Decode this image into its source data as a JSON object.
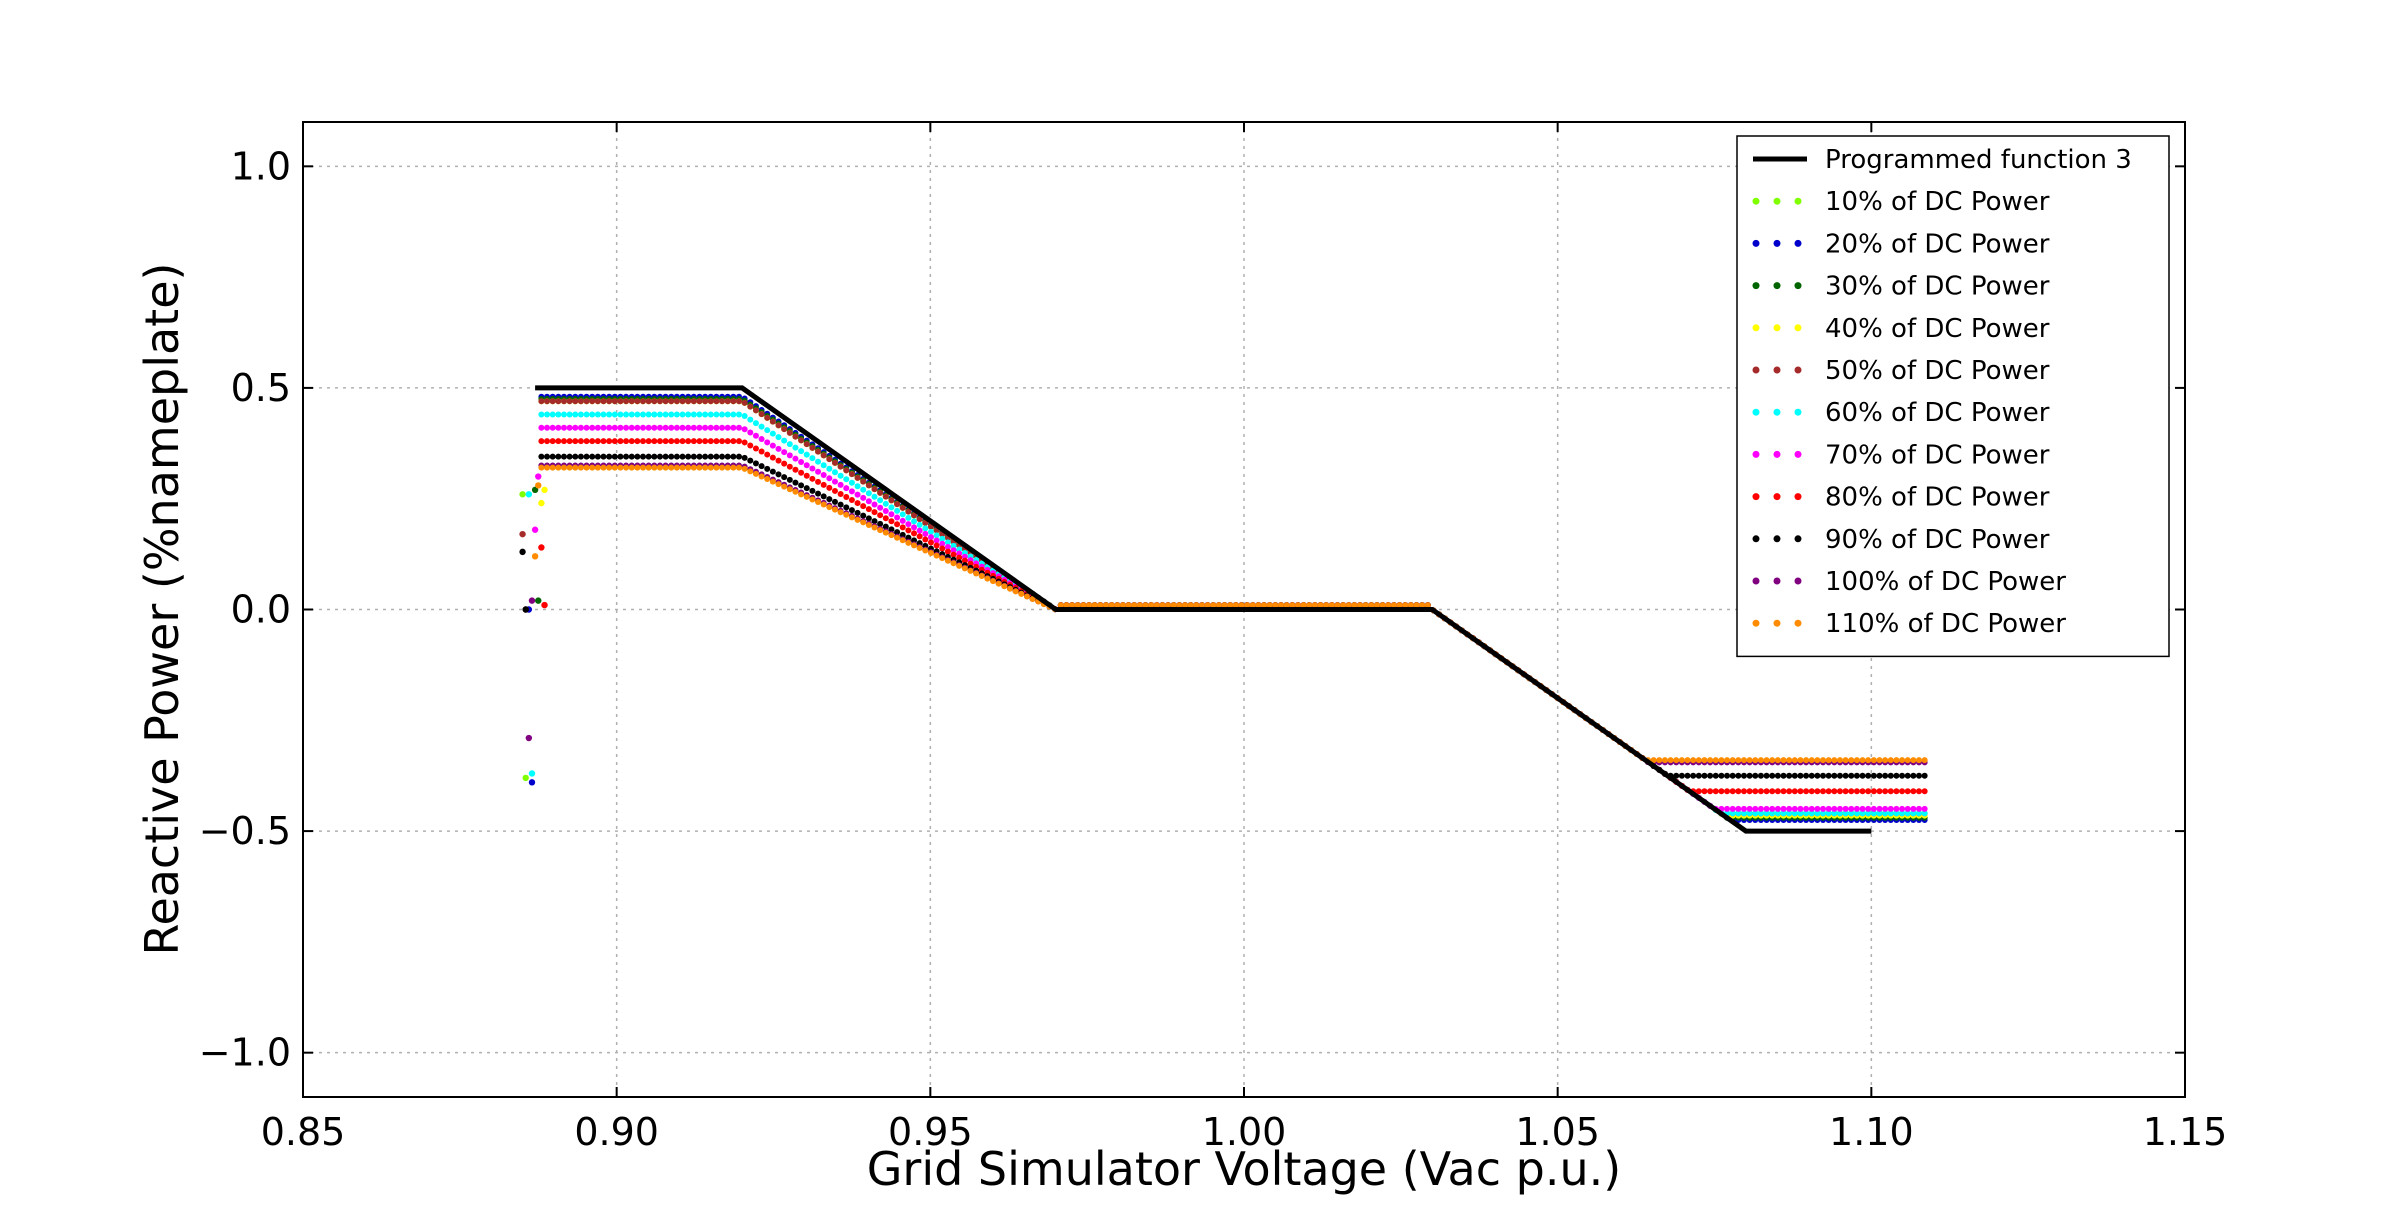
{
  "chart_data": {
    "type": "scatter",
    "xlabel": "Grid Simulator Voltage (Vac p.u.)",
    "ylabel": "Reactive Power (%nameplate)",
    "xlim": [
      0.85,
      1.15
    ],
    "ylim": [
      -1.1,
      1.1
    ],
    "x_ticks": [
      "0.85",
      "0.90",
      "0.95",
      "1.00",
      "1.05",
      "1.10",
      "1.15"
    ],
    "y_ticks": [
      "1.0",
      "0.5",
      "0.0",
      "−0.5",
      "−1.0"
    ],
    "grid": true,
    "legend_position": "top-right",
    "programmed_function": {
      "name": "Programmed function 3",
      "color": "#000000",
      "points": [
        [
          0.887,
          0.5
        ],
        [
          0.92,
          0.5
        ],
        [
          0.97,
          0.0
        ],
        [
          1.03,
          0.0
        ],
        [
          1.08,
          -0.5
        ],
        [
          1.1,
          -0.5
        ]
      ]
    },
    "series": [
      {
        "name": "10% of DC Power",
        "color": "#7fff00",
        "q_low": 0.47,
        "q_high": -0.47
      },
      {
        "name": "20% of DC Power",
        "color": "#0000cd",
        "q_low": 0.48,
        "q_high": -0.475
      },
      {
        "name": "30% of DC Power",
        "color": "#006400",
        "q_low": 0.475,
        "q_high": -0.47
      },
      {
        "name": "40% of DC Power",
        "color": "#ffff00",
        "q_low": 0.47,
        "q_high": -0.465
      },
      {
        "name": "50% of DC Power",
        "color": "#a52a2a",
        "q_low": 0.47,
        "q_high": -0.46
      },
      {
        "name": "60% of DC Power",
        "color": "#00ffff",
        "q_low": 0.44,
        "q_high": -0.46
      },
      {
        "name": "70% of DC Power",
        "color": "#ff00ff",
        "q_low": 0.41,
        "q_high": -0.45
      },
      {
        "name": "80% of DC Power",
        "color": "#ff0000",
        "q_low": 0.38,
        "q_high": -0.41
      },
      {
        "name": "90% of DC Power",
        "color": "#000000",
        "q_low": 0.345,
        "q_high": -0.375
      },
      {
        "name": "100% of DC Power",
        "color": "#800080",
        "q_low": 0.325,
        "q_high": -0.345
      },
      {
        "name": "110% of DC Power",
        "color": "#ff8c00",
        "q_low": 0.32,
        "q_high": -0.34
      }
    ]
  }
}
